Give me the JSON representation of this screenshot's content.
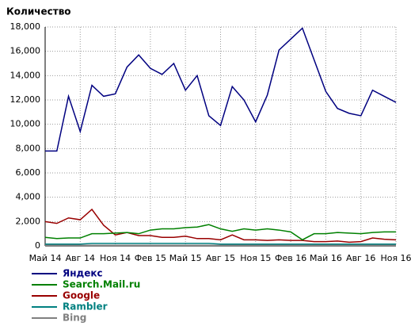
{
  "chart_data": {
    "type": "line",
    "title": "Количество",
    "categories": [
      "Май 14",
      null,
      null,
      "Авг 14",
      null,
      null,
      "Ноя 14",
      null,
      null,
      "Фев 15",
      null,
      null,
      "Май 15",
      null,
      null,
      "Авг 15",
      null,
      null,
      "Ноя 15",
      null,
      null,
      "Фев 16",
      null,
      null,
      "Май 16",
      null,
      null,
      "Авг 16",
      null,
      null,
      "Ноя 16"
    ],
    "series": [
      {
        "name": "Яндекс",
        "color": "#000080",
        "values": [
          7800,
          7800,
          12300,
          9400,
          13200,
          12300,
          12500,
          14700,
          15700,
          14600,
          14100,
          15000,
          12800,
          14000,
          10700,
          9900,
          13100,
          12000,
          10200,
          12400,
          16100,
          17000,
          17900,
          15300,
          12700,
          11300,
          10900,
          10700,
          12800,
          12300,
          11800
        ]
      },
      {
        "name": "Search.Mail.ru",
        "color": "#008000",
        "values": [
          700,
          600,
          650,
          650,
          1000,
          1000,
          1050,
          1100,
          1000,
          1300,
          1400,
          1400,
          1500,
          1550,
          1750,
          1400,
          1200,
          1400,
          1300,
          1400,
          1300,
          1150,
          500,
          1000,
          1000,
          1100,
          1050,
          1000,
          1100,
          1150,
          1150
        ]
      },
      {
        "name": "Google",
        "color": "#990000",
        "values": [
          2000,
          1850,
          2300,
          2150,
          3000,
          1700,
          900,
          1100,
          850,
          850,
          700,
          700,
          800,
          600,
          600,
          500,
          900,
          500,
          500,
          450,
          500,
          450,
          450,
          350,
          350,
          400,
          300,
          350,
          650,
          550,
          500
        ]
      },
      {
        "name": "Rambler",
        "color": "#008080",
        "values": [
          150,
          150,
          150,
          150,
          200,
          200,
          200,
          200,
          200,
          200,
          200,
          200,
          200,
          200,
          200,
          150,
          150,
          150,
          150,
          150,
          150,
          150,
          150,
          150,
          150,
          150,
          150,
          150,
          150,
          150,
          150
        ]
      },
      {
        "name": "Bing",
        "color": "#808080",
        "values": [
          50,
          50,
          50,
          50,
          50,
          50,
          50,
          50,
          50,
          50,
          50,
          50,
          50,
          50,
          50,
          50,
          50,
          50,
          50,
          50,
          50,
          50,
          50,
          50,
          50,
          50,
          50,
          50,
          50,
          50,
          50
        ]
      }
    ],
    "ylim": [
      0,
      18000
    ],
    "yticks": [
      0,
      {
        "value": 2000,
        "label": "2,000"
      },
      {
        "value": 4000,
        "label": "4,000"
      },
      {
        "value": 6000,
        "label": "6,000"
      },
      {
        "value": 8000,
        "label": "8,000"
      },
      {
        "value": 10000,
        "label": "10,000"
      },
      {
        "value": 12000,
        "label": "12,000"
      },
      {
        "value": 14000,
        "label": "14,000"
      },
      {
        "value": 16000,
        "label": "16,000"
      },
      {
        "value": 18000,
        "label": "18,000"
      }
    ],
    "grid": true
  }
}
